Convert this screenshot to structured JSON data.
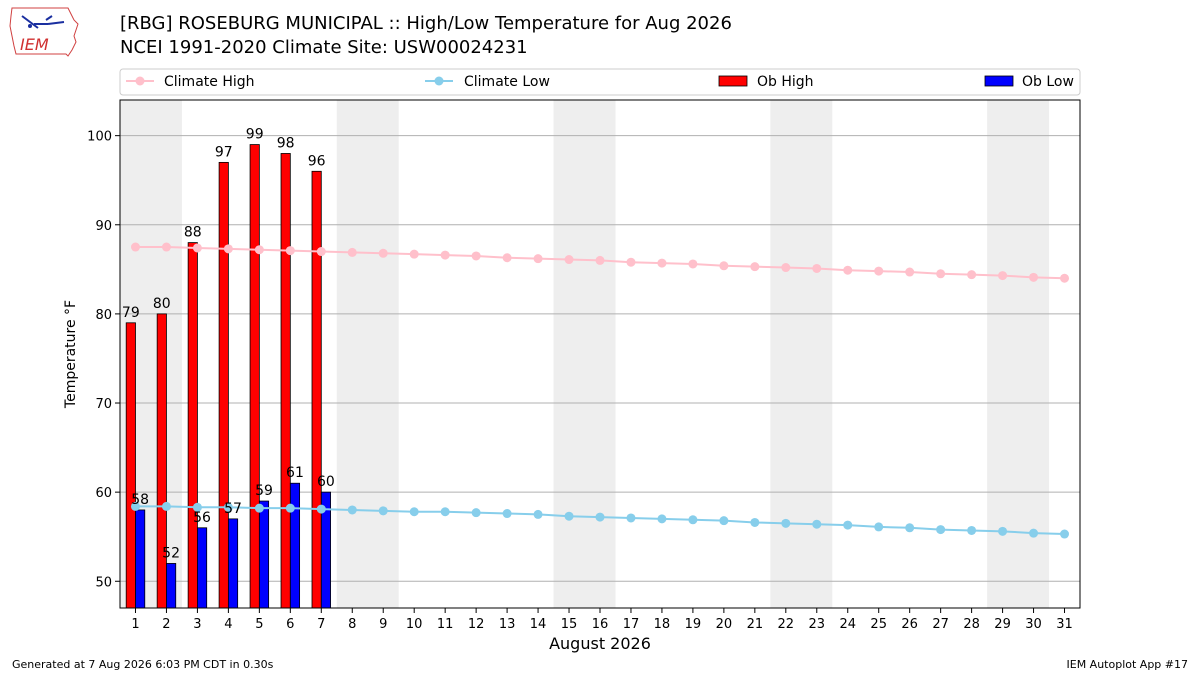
{
  "header": {
    "title": "[RBG] ROSEBURG MUNICIPAL :: High/Low Temperature for Aug 2026",
    "subtitle": "NCEI 1991-2020 Climate Site: USW00024231"
  },
  "logo": {
    "text": "IEM",
    "icon": "iem-iowa-logo"
  },
  "footer": {
    "generated": "Generated at 7 Aug 2026 6:03 PM CDT in 0.30s",
    "app": "IEM Autoplot App #17"
  },
  "colors": {
    "climate_high": "#ffc0cb",
    "climate_low": "#87ceeb",
    "ob_high": "#ff0000",
    "ob_low": "#0000ff",
    "weekend_shade": "#eeeeee",
    "grid": "#b0b0b0"
  },
  "chart_data": {
    "type": "bar",
    "xlabel": "August 2026",
    "ylabel": "Temperature °F",
    "xlim": [
      0.5,
      31.5
    ],
    "ylim": [
      47,
      104
    ],
    "yticks": [
      50,
      60,
      70,
      80,
      90,
      100
    ],
    "grid": "horizontal",
    "legend_position": "top",
    "legend": [
      "Climate High",
      "Climate Low",
      "Ob High",
      "Ob Low"
    ],
    "days": [
      1,
      2,
      3,
      4,
      5,
      6,
      7,
      8,
      9,
      10,
      11,
      12,
      13,
      14,
      15,
      16,
      17,
      18,
      19,
      20,
      21,
      22,
      23,
      24,
      25,
      26,
      27,
      28,
      29,
      30,
      31
    ],
    "weekend_shading": [
      [
        1,
        2
      ],
      [
        8,
        9
      ],
      [
        15,
        16
      ],
      [
        22,
        23
      ],
      [
        29,
        30
      ]
    ],
    "series": [
      {
        "name": "Climate High",
        "kind": "line",
        "color": "#ffc0cb",
        "values": [
          87.5,
          87.5,
          87.4,
          87.3,
          87.2,
          87.1,
          87.0,
          86.9,
          86.8,
          86.7,
          86.6,
          86.5,
          86.3,
          86.2,
          86.1,
          86.0,
          85.8,
          85.7,
          85.6,
          85.4,
          85.3,
          85.2,
          85.1,
          84.9,
          84.8,
          84.7,
          84.5,
          84.4,
          84.3,
          84.1,
          84.0
        ]
      },
      {
        "name": "Climate Low",
        "kind": "line",
        "color": "#87ceeb",
        "values": [
          58.4,
          58.4,
          58.3,
          58.3,
          58.2,
          58.2,
          58.1,
          58.0,
          57.9,
          57.8,
          57.8,
          57.7,
          57.6,
          57.5,
          57.3,
          57.2,
          57.1,
          57.0,
          56.9,
          56.8,
          56.6,
          56.5,
          56.4,
          56.3,
          56.1,
          56.0,
          55.8,
          55.7,
          55.6,
          55.4,
          55.3
        ]
      },
      {
        "name": "Ob High",
        "kind": "bar",
        "color": "#ff0000",
        "values": [
          79,
          80,
          88,
          97,
          99,
          98,
          96
        ]
      },
      {
        "name": "Ob Low",
        "kind": "bar",
        "color": "#0000ff",
        "values": [
          58,
          52,
          56,
          57,
          59,
          61,
          60
        ]
      }
    ]
  }
}
